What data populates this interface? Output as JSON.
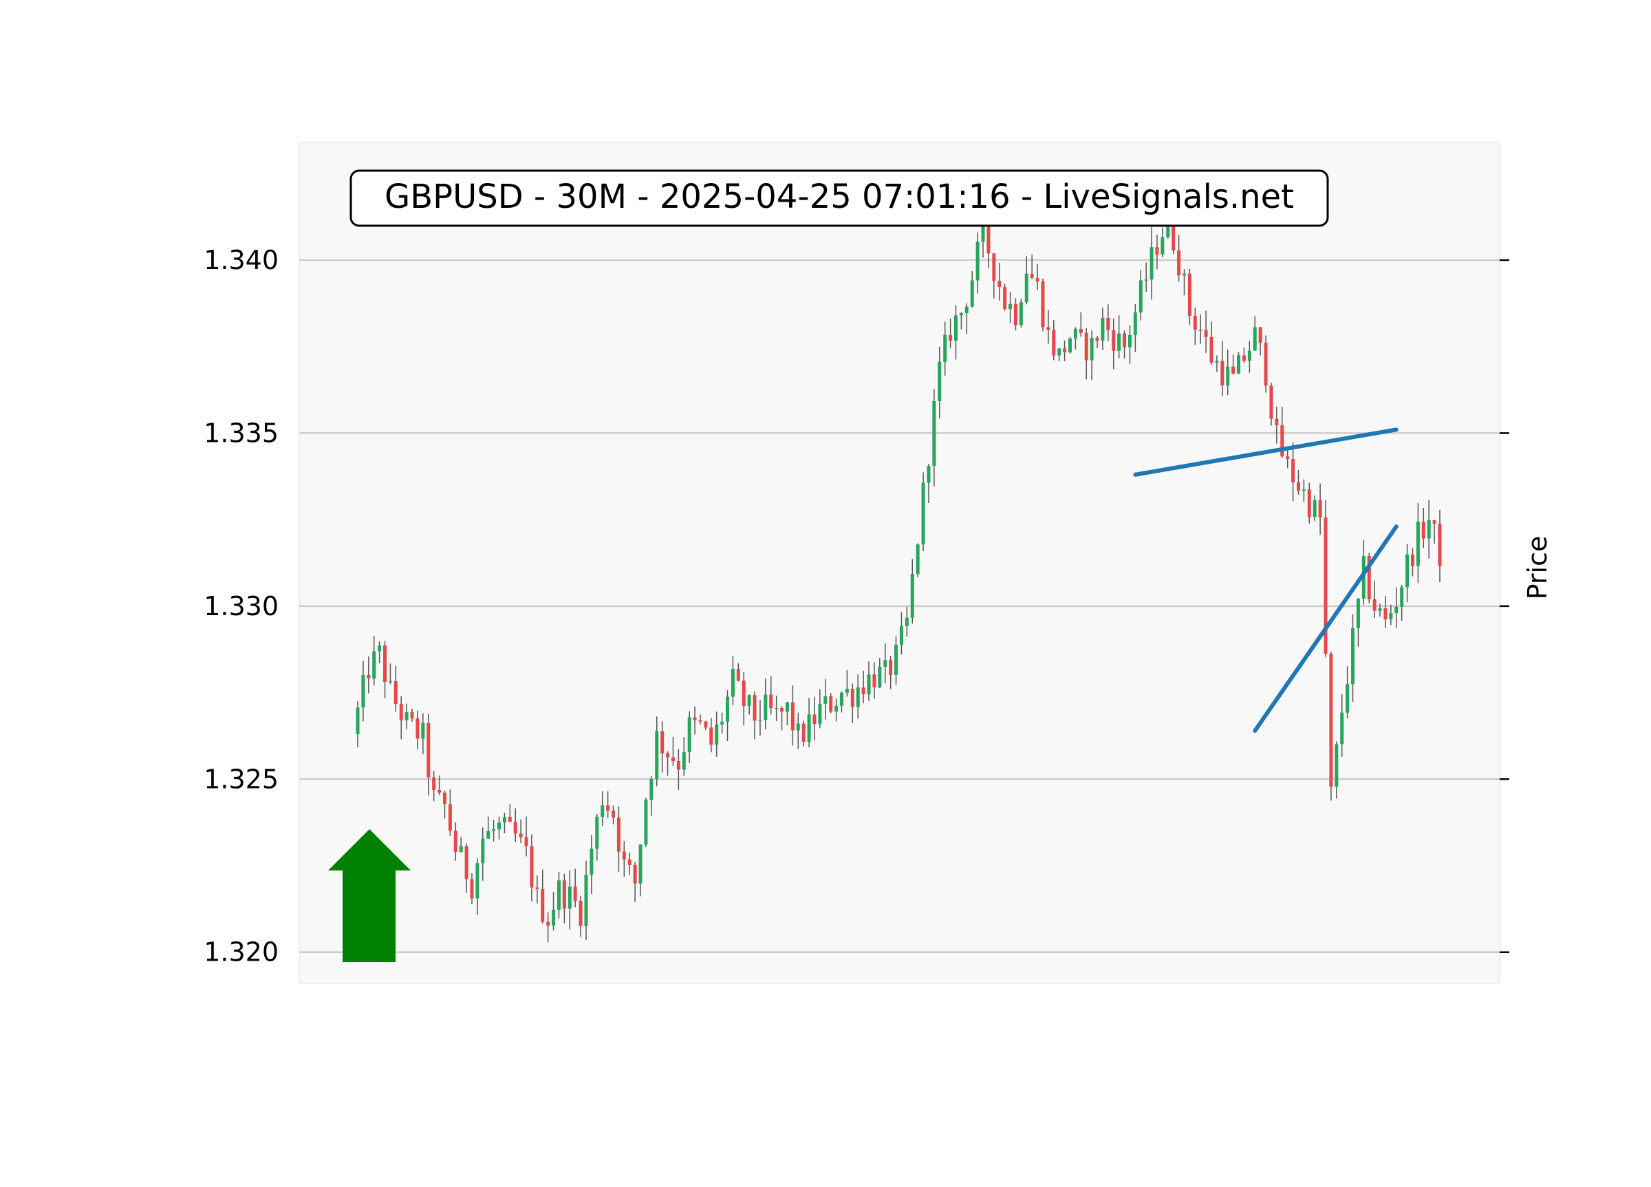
{
  "chart_data": {
    "type": "candlestick",
    "title": "GBPUSD - 30M - 2025-04-25 07:01:16 - LiveSignals.net",
    "ylabel": "Price",
    "ylim": [
      1.3191,
      1.3434
    ],
    "yticks": [
      1.32,
      1.325,
      1.33,
      1.335,
      1.34
    ],
    "ytick_labels": [
      "1.320",
      "1.325",
      "1.330",
      "1.335",
      "1.340"
    ],
    "grid": true,
    "up_color": "#26a65b",
    "down_color": "#e8474a",
    "wick_color": "#555555",
    "bar_count": 200,
    "close_path": [
      [
        0,
        1.3263
      ],
      [
        3,
        1.3282
      ],
      [
        5,
        1.3286
      ],
      [
        7,
        1.3275
      ],
      [
        10,
        1.3266
      ],
      [
        13,
        1.3262
      ],
      [
        15,
        1.3244
      ],
      [
        17,
        1.3242
      ],
      [
        19,
        1.323
      ],
      [
        22,
        1.322
      ],
      [
        24,
        1.3233
      ],
      [
        27,
        1.3236
      ],
      [
        30,
        1.3233
      ],
      [
        32,
        1.3228
      ],
      [
        34,
        1.3215
      ],
      [
        36,
        1.321
      ],
      [
        38,
        1.3218
      ],
      [
        40,
        1.3216
      ],
      [
        42,
        1.3212
      ],
      [
        44,
        1.323
      ],
      [
        46,
        1.3245
      ],
      [
        48,
        1.324
      ],
      [
        50,
        1.3225
      ],
      [
        52,
        1.322
      ],
      [
        54,
        1.3245
      ],
      [
        56,
        1.3262
      ],
      [
        58,
        1.3258
      ],
      [
        60,
        1.3255
      ],
      [
        62,
        1.3265
      ],
      [
        64,
        1.3265
      ],
      [
        66,
        1.326
      ],
      [
        68,
        1.3268
      ],
      [
        70,
        1.3278
      ],
      [
        72,
        1.3272
      ],
      [
        74,
        1.3268
      ],
      [
        76,
        1.327
      ],
      [
        78,
        1.3268
      ],
      [
        80,
        1.327
      ],
      [
        82,
        1.3262
      ],
      [
        84,
        1.3265
      ],
      [
        86,
        1.327
      ],
      [
        88,
        1.3272
      ],
      [
        90,
        1.3275
      ],
      [
        92,
        1.3275
      ],
      [
        94,
        1.3278
      ],
      [
        96,
        1.328
      ],
      [
        98,
        1.328
      ],
      [
        100,
        1.3285
      ],
      [
        102,
        1.3295
      ],
      [
        104,
        1.332
      ],
      [
        106,
        1.3345
      ],
      [
        108,
        1.3368
      ],
      [
        110,
        1.338
      ],
      [
        112,
        1.3385
      ],
      [
        114,
        1.3395
      ],
      [
        116,
        1.3408
      ],
      [
        118,
        1.3398
      ],
      [
        120,
        1.3388
      ],
      [
        122,
        1.3385
      ],
      [
        124,
        1.3398
      ],
      [
        126,
        1.3392
      ],
      [
        128,
        1.3378
      ],
      [
        130,
        1.3372
      ],
      [
        132,
        1.3378
      ],
      [
        134,
        1.3375
      ],
      [
        136,
        1.3375
      ],
      [
        138,
        1.3382
      ],
      [
        140,
        1.3378
      ],
      [
        142,
        1.3375
      ],
      [
        144,
        1.3385
      ],
      [
        146,
        1.3395
      ],
      [
        148,
        1.3405
      ],
      [
        150,
        1.3412
      ],
      [
        152,
        1.34
      ],
      [
        154,
        1.3385
      ],
      [
        156,
        1.338
      ],
      [
        158,
        1.3372
      ],
      [
        160,
        1.3368
      ],
      [
        162,
        1.3365
      ],
      [
        164,
        1.3372
      ],
      [
        166,
        1.3378
      ],
      [
        168,
        1.3368
      ],
      [
        170,
        1.3348
      ],
      [
        172,
        1.334
      ],
      [
        174,
        1.3335
      ],
      [
        176,
        1.333
      ],
      [
        178,
        1.3325
      ],
      [
        180,
        1.3245
      ],
      [
        182,
        1.327
      ],
      [
        184,
        1.329
      ],
      [
        186,
        1.331
      ],
      [
        188,
        1.33
      ],
      [
        190,
        1.3295
      ],
      [
        192,
        1.3302
      ],
      [
        194,
        1.3312
      ],
      [
        196,
        1.332
      ],
      [
        198,
        1.3325
      ],
      [
        200,
        1.3315
      ]
    ],
    "trend_lines": [
      {
        "x": [
          143,
          191
        ],
        "y": [
          1.3338,
          1.3351
        ],
        "color": "#1f77b4"
      },
      {
        "x": [
          165,
          191
        ],
        "y": [
          1.3264,
          1.3323
        ],
        "color": "#1f77b4"
      }
    ],
    "annotation_arrow": {
      "direction": "up",
      "color": "#008000"
    }
  }
}
